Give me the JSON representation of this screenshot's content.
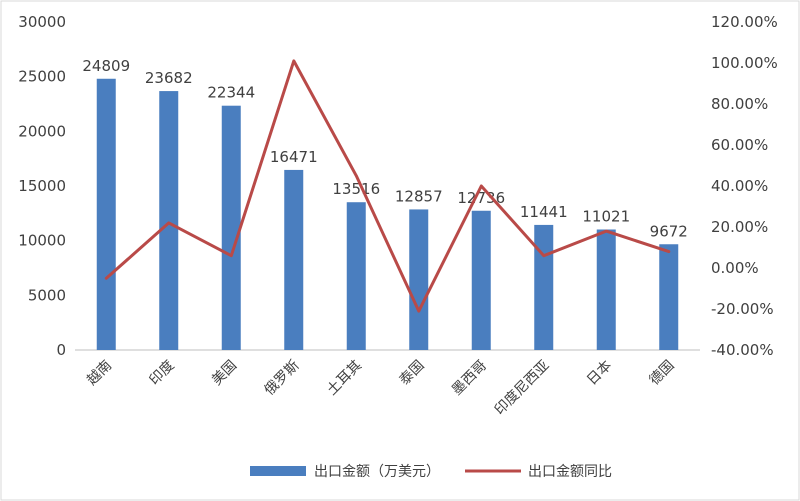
{
  "chart_data": {
    "type": "bar+line",
    "categories": [
      "越南",
      "印度",
      "美国",
      "俄罗斯",
      "土耳其",
      "泰国",
      "墨西哥",
      "印度尼西亚",
      "日本",
      "德国"
    ],
    "series": [
      {
        "name": "出口金额（万美元）",
        "type": "bar",
        "axis": "left",
        "values": [
          24809,
          23682,
          22344,
          16471,
          13516,
          12857,
          12736,
          11441,
          11021,
          9672
        ],
        "color": "#4a7ebf"
      },
      {
        "name": "出口金额同比",
        "type": "line",
        "axis": "right",
        "values": [
          -5.0,
          22.0,
          6.0,
          101.0,
          45.0,
          -21.0,
          40.0,
          6.0,
          18.0,
          8.0
        ],
        "color": "#b94a48"
      }
    ],
    "y_left": {
      "lim": [
        0,
        30000
      ],
      "ticks": [
        0,
        5000,
        10000,
        15000,
        20000,
        25000,
        30000
      ],
      "tick_labels": [
        "0",
        "5000",
        "10000",
        "15000",
        "20000",
        "25000",
        "30000"
      ]
    },
    "y_right": {
      "lim": [
        -40,
        120
      ],
      "ticks": [
        -40,
        -20,
        0,
        20,
        40,
        60,
        80,
        100,
        120
      ],
      "tick_labels": [
        "-40.00%",
        "-20.00%",
        "0.00%",
        "20.00%",
        "40.00%",
        "60.00%",
        "80.00%",
        "100.00%",
        "120.00%"
      ]
    },
    "data_labels": [
      "24809",
      "23682",
      "22344",
      "16471",
      "13516",
      "12857",
      "12736",
      "11441",
      "11021",
      "9672"
    ],
    "grid": false,
    "legend_position": "bottom"
  }
}
